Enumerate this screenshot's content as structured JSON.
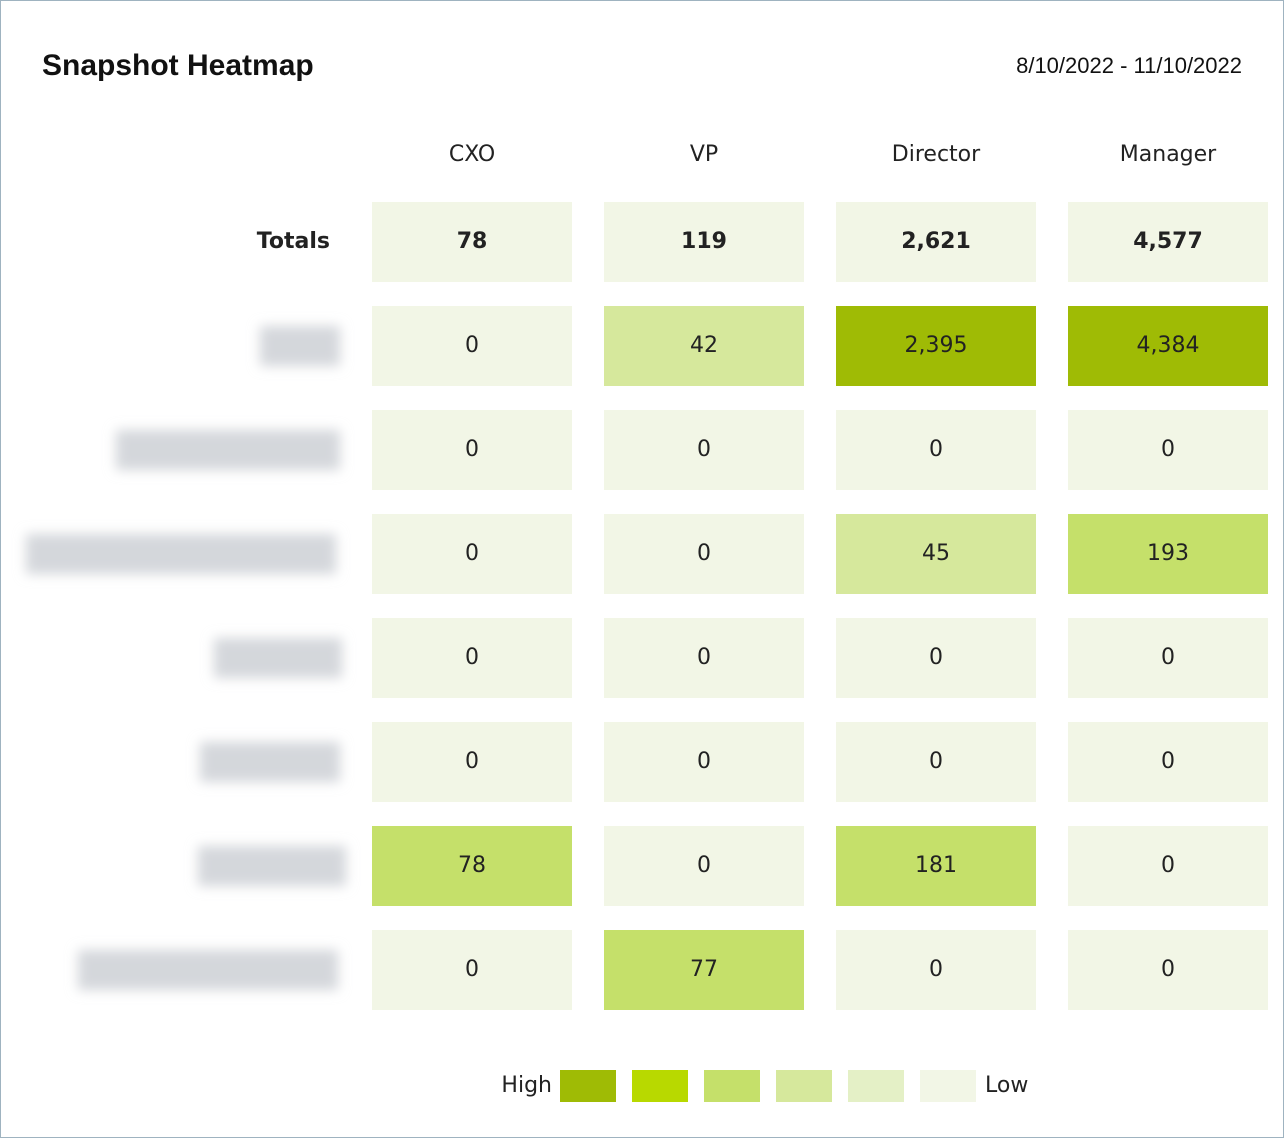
{
  "chart_data": {
    "type": "heatmap",
    "title": "Snapshot Heatmap",
    "subtitle": "8/10/2022 - 11/10/2022",
    "categories": [
      "CXO",
      "VP",
      "Director",
      "Manager"
    ],
    "series": [
      {
        "name": "Totals",
        "values": [
          78,
          119,
          2621,
          4577
        ],
        "value_labels": [
          "78",
          "119",
          "2,621",
          "4,577"
        ],
        "colors": [
          "#f2f6e6",
          "#f2f6e6",
          "#f2f6e6",
          "#f2f6e6"
        ]
      },
      {
        "name": null,
        "values": [
          0,
          42,
          2395,
          4384
        ],
        "value_labels": [
          "0",
          "42",
          "2,395",
          "4,384"
        ],
        "colors": [
          "#f2f6e6",
          "#d6e89c",
          "#9fbb05",
          "#9fbb05"
        ]
      },
      {
        "name": null,
        "values": [
          0,
          0,
          0,
          0
        ],
        "colors": [
          "#f2f6e6",
          "#f2f6e6",
          "#f2f6e6",
          "#f2f6e6"
        ]
      },
      {
        "name": null,
        "values": [
          0,
          0,
          45,
          193
        ],
        "colors": [
          "#f2f6e6",
          "#f2f6e6",
          "#d6e89c",
          "#c5e06a"
        ]
      },
      {
        "name": null,
        "values": [
          0,
          0,
          0,
          0
        ],
        "colors": [
          "#f2f6e6",
          "#f2f6e6",
          "#f2f6e6",
          "#f2f6e6"
        ]
      },
      {
        "name": null,
        "values": [
          0,
          0,
          0,
          0
        ],
        "colors": [
          "#f2f6e6",
          "#f2f6e6",
          "#f2f6e6",
          "#f2f6e6"
        ]
      },
      {
        "name": null,
        "values": [
          78,
          0,
          181,
          0
        ],
        "colors": [
          "#c5e06a",
          "#f2f6e6",
          "#c5e06a",
          "#f2f6e6"
        ]
      },
      {
        "name": null,
        "values": [
          0,
          77,
          0,
          0
        ],
        "colors": [
          "#f2f6e6",
          "#c5e06a",
          "#f2f6e6",
          "#f2f6e6"
        ]
      }
    ],
    "legend": {
      "high_label": "High",
      "low_label": "Low",
      "colors": [
        "#9fbb05",
        "#b8d900",
        "#c5e06a",
        "#d6e89c",
        "#e4f0c6",
        "#f2f6e6"
      ]
    }
  }
}
